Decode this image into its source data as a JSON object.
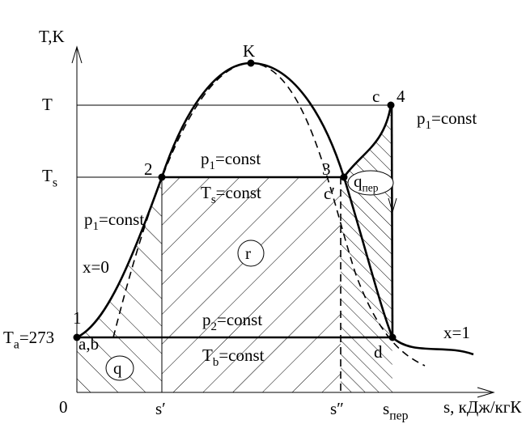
{
  "axes": {
    "y_label": "T,K",
    "x_label": "s, кДж/кгК",
    "origin": "0"
  },
  "y_ticks": [
    {
      "base": "T"
    },
    {
      "base": "T",
      "sub": "s"
    },
    {
      "base": "T",
      "sub": "a",
      "tail": "=273"
    }
  ],
  "x_ticks": [
    {
      "base": "s′"
    },
    {
      "base": "s″"
    },
    {
      "base": "s",
      "sub": "пер"
    }
  ],
  "points": [
    {
      "label": "K"
    },
    {
      "label": "c"
    },
    {
      "label": "4"
    },
    {
      "label": "2"
    },
    {
      "label": "3"
    },
    {
      "label": "c′"
    },
    {
      "label": "1"
    },
    {
      "label": "a,b"
    },
    {
      "label": "d"
    }
  ],
  "annotations": [
    {
      "base": "p",
      "sub": "1",
      "tail": "=const"
    },
    {
      "base": "p",
      "sub": "1",
      "tail": "=const"
    },
    {
      "base": "T",
      "sub": "s",
      "tail": "=const"
    },
    {
      "base": "p",
      "sub": "1",
      "tail": "=const"
    },
    {
      "base": "x=0"
    },
    {
      "base": "p",
      "sub": "2",
      "tail": "=const"
    },
    {
      "base": "T",
      "sub": "b",
      "tail": "=const"
    },
    {
      "base": "x=1"
    }
  ],
  "region_labels": [
    {
      "base": "r"
    },
    {
      "base": "q"
    },
    {
      "base": "q",
      "sub": "пер"
    }
  ]
}
